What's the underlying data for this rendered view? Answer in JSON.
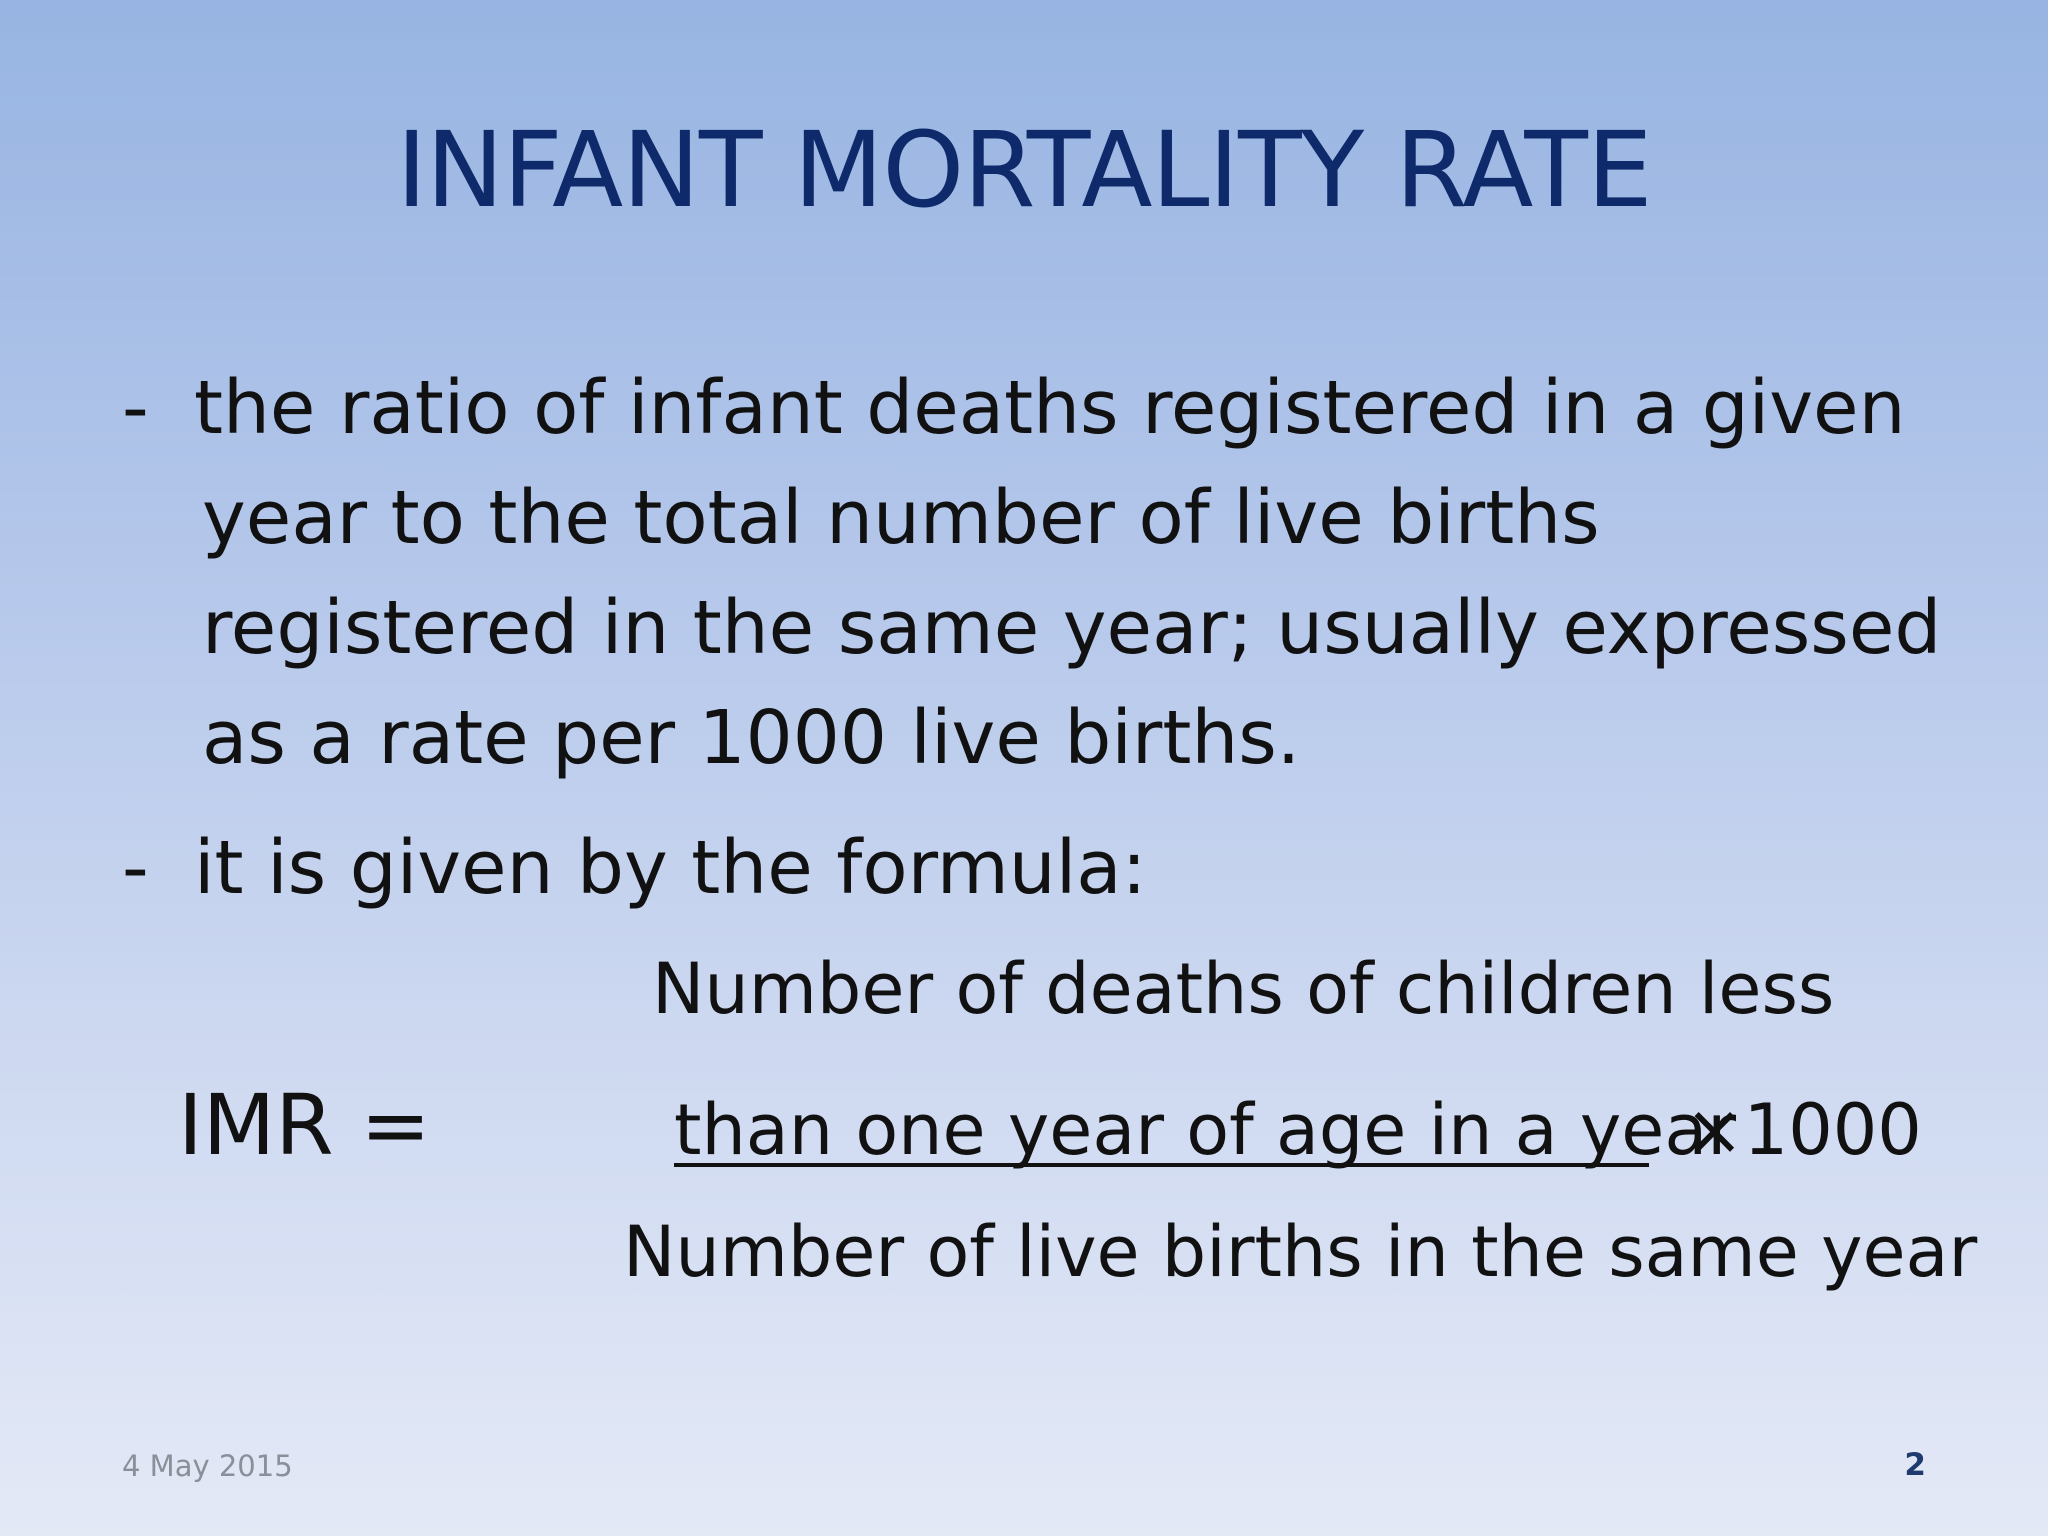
{
  "slide": {
    "title": "INFANT MORTALITY RATE",
    "bullets": [
      {
        "marker": "-",
        "lines": [
          "the ratio of infant deaths registered in a given",
          "year to the total number of live births",
          "registered in the same year; usually expressed",
          "as a rate per 1000 live births."
        ]
      },
      {
        "marker": "-",
        "lines": [
          "it is given by the formula:"
        ]
      }
    ],
    "formula": {
      "lhs": "IMR  =",
      "numerator_line1": "Number of deaths of children less",
      "numerator_line2": "than one year of age in a year ",
      "multiplier": "×1000",
      "denominator": "Number of live births in the same year"
    },
    "footer": {
      "date": "4 May 2015",
      "page_number": "2"
    }
  },
  "colors": {
    "title": "#0f2a6b",
    "body_text": "#111111",
    "footer_date": "#8a8f99",
    "page_number": "#1f3a6e",
    "background_top": "#97b4e2",
    "background_bottom": "#e4e9f6"
  }
}
